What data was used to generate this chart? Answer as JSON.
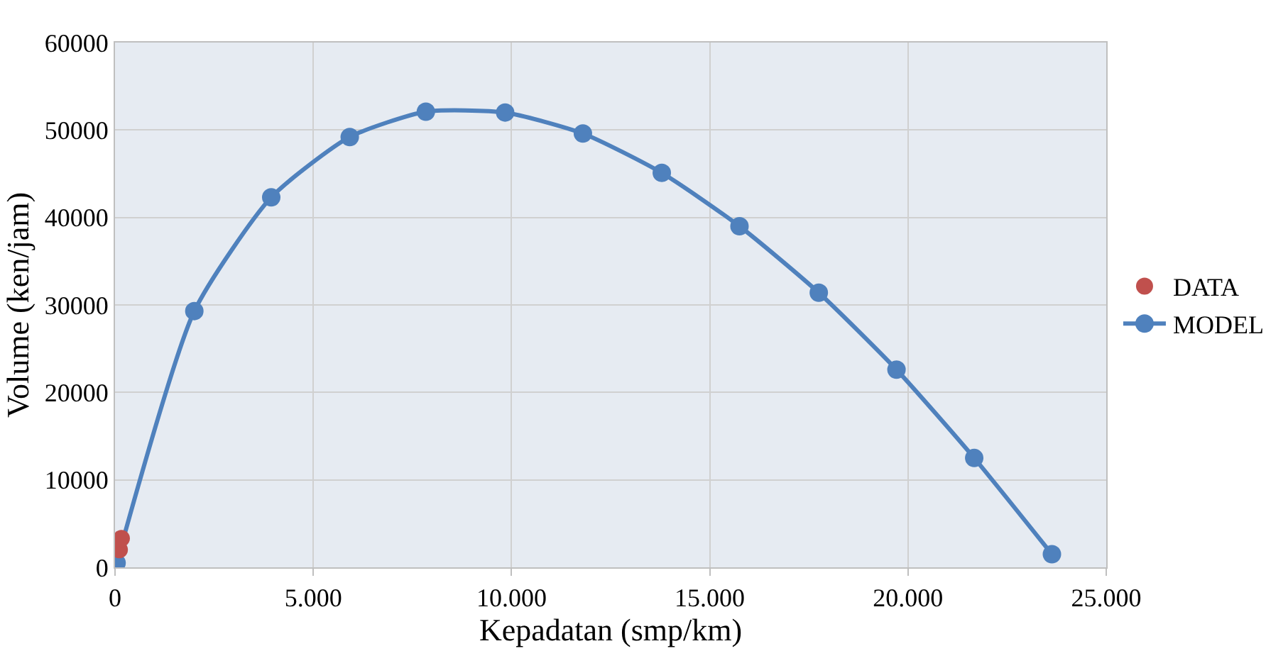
{
  "chart_data": {
    "type": "scatter",
    "xlabel": "Kepadatan (smp/km)",
    "ylabel": "Volume (ken/jam)",
    "xlim": [
      0,
      25000
    ],
    "xticks": [
      {
        "value": 0,
        "label": "0"
      },
      {
        "value": 5000,
        "label": "5.000"
      },
      {
        "value": 10000,
        "label": "10.000"
      },
      {
        "value": 15000,
        "label": "15.000"
      },
      {
        "value": 20000,
        "label": "20.000"
      },
      {
        "value": 25000,
        "label": "25.000"
      }
    ],
    "ylim": [
      0,
      60000
    ],
    "yticks": [
      0,
      10000,
      20000,
      30000,
      40000,
      50000,
      60000
    ],
    "grid": true,
    "legend": "right",
    "marker": "circle",
    "series": [
      {
        "name": "DATA",
        "color": "#c0504d",
        "x": [
          110,
          160
        ],
        "values": [
          2000,
          3300
        ]
      },
      {
        "name": "MODEL",
        "type": "line",
        "color": "#4f81bd",
        "line_style": "solid",
        "x": [
          40,
          2000,
          3940,
          5920,
          7840,
          9840,
          11800,
          13790,
          15750,
          17750,
          19710,
          21670,
          23630
        ],
        "values": [
          500,
          29300,
          42300,
          49200,
          52100,
          52000,
          49600,
          45100,
          39000,
          31400,
          22600,
          12500,
          1500
        ]
      }
    ]
  }
}
